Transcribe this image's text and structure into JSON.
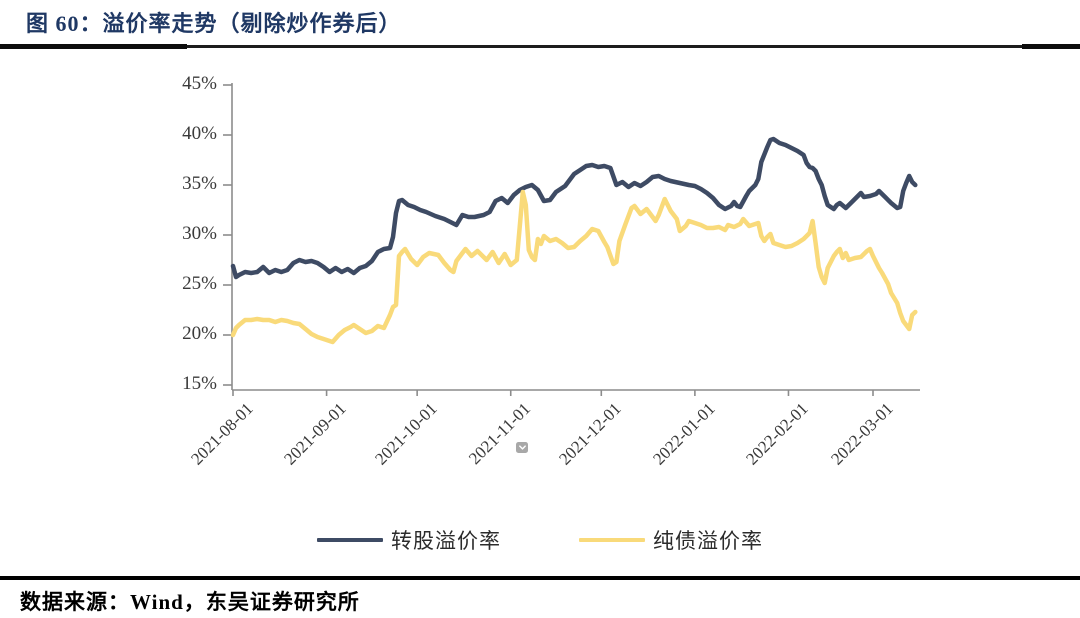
{
  "figure": {
    "title": "图 60：溢价率走势（剔除炒作券后）"
  },
  "footer": {
    "source_label": "数据来源：Wind，东吴证券研究所"
  },
  "icons": {
    "collapse_chevron": "chevron-down"
  },
  "colors": {
    "title": "#1F3864",
    "axis": "#8C8C8C",
    "rule": "#111111",
    "series_navy": "#3E4B64",
    "series_yellow": "#F9DA7A"
  },
  "chart_data": {
    "type": "line",
    "title": "溢价率走势（剔除炒作券后）",
    "xlabel": "",
    "ylabel": "",
    "grid": false,
    "x_axis": {
      "unit": "date",
      "domain_days": [
        0,
        226
      ],
      "ticks": [
        {
          "label": "2021-08-01",
          "day": 0
        },
        {
          "label": "2021-09-01",
          "day": 31
        },
        {
          "label": "2021-10-01",
          "day": 61
        },
        {
          "label": "2021-11-01",
          "day": 92
        },
        {
          "label": "2021-12-01",
          "day": 122
        },
        {
          "label": "2022-01-01",
          "day": 153
        },
        {
          "label": "2022-02-01",
          "day": 184
        },
        {
          "label": "2022-03-01",
          "day": 212
        }
      ]
    },
    "y_axis": {
      "ylim": [
        15,
        45
      ],
      "unit": "%",
      "ticks": [
        {
          "label": "45%",
          "value": 45
        },
        {
          "label": "40%",
          "value": 40
        },
        {
          "label": "35%",
          "value": 35
        },
        {
          "label": "30%",
          "value": 30
        },
        {
          "label": "25%",
          "value": 25
        },
        {
          "label": "20%",
          "value": 20
        },
        {
          "label": "15%",
          "value": 15
        }
      ]
    },
    "legend": {
      "position": "bottom",
      "entries": [
        {
          "label": "转股溢价率",
          "color": "#3E4B64"
        },
        {
          "label": "纯债溢价率",
          "color": "#F9DA7A"
        }
      ]
    },
    "series": [
      {
        "name": "转股溢价率",
        "color": "#3E4B64",
        "points": [
          [
            0,
            26.9
          ],
          [
            1,
            25.8
          ],
          [
            2,
            26.0
          ],
          [
            4,
            26.3
          ],
          [
            6,
            26.2
          ],
          [
            8,
            26.3
          ],
          [
            10,
            26.8
          ],
          [
            12,
            26.2
          ],
          [
            14,
            26.5
          ],
          [
            16,
            26.3
          ],
          [
            18,
            26.5
          ],
          [
            20,
            27.2
          ],
          [
            22,
            27.5
          ],
          [
            24,
            27.3
          ],
          [
            26,
            27.4
          ],
          [
            28,
            27.2
          ],
          [
            30,
            26.8
          ],
          [
            32,
            26.3
          ],
          [
            34,
            26.7
          ],
          [
            36,
            26.3
          ],
          [
            38,
            26.6
          ],
          [
            40,
            26.2
          ],
          [
            42,
            26.7
          ],
          [
            44,
            26.9
          ],
          [
            46,
            27.4
          ],
          [
            48,
            28.3
          ],
          [
            50,
            28.6
          ],
          [
            52,
            28.7
          ],
          [
            53,
            29.8
          ],
          [
            54,
            32.2
          ],
          [
            55,
            33.4
          ],
          [
            56,
            33.5
          ],
          [
            58,
            33.0
          ],
          [
            60,
            32.8
          ],
          [
            62,
            32.5
          ],
          [
            64,
            32.3
          ],
          [
            67,
            31.9
          ],
          [
            70,
            31.6
          ],
          [
            72,
            31.3
          ],
          [
            74,
            31.0
          ],
          [
            76,
            32.0
          ],
          [
            78,
            31.8
          ],
          [
            80,
            31.8
          ],
          [
            83,
            32.0
          ],
          [
            85,
            32.3
          ],
          [
            87,
            33.4
          ],
          [
            89,
            33.7
          ],
          [
            91,
            33.2
          ],
          [
            93,
            34.0
          ],
          [
            95,
            34.5
          ],
          [
            97,
            34.8
          ],
          [
            99,
            35.0
          ],
          [
            101,
            34.5
          ],
          [
            103,
            33.4
          ],
          [
            105,
            33.5
          ],
          [
            107,
            34.3
          ],
          [
            110,
            34.9
          ],
          [
            113,
            36.1
          ],
          [
            115,
            36.5
          ],
          [
            117,
            36.9
          ],
          [
            119,
            37.0
          ],
          [
            121,
            36.8
          ],
          [
            123,
            36.9
          ],
          [
            125,
            36.7
          ],
          [
            127,
            35.0
          ],
          [
            129,
            35.3
          ],
          [
            131,
            34.8
          ],
          [
            133,
            35.2
          ],
          [
            135,
            34.9
          ],
          [
            137,
            35.3
          ],
          [
            139,
            35.8
          ],
          [
            141,
            35.9
          ],
          [
            143,
            35.6
          ],
          [
            145,
            35.4
          ],
          [
            148,
            35.2
          ],
          [
            151,
            35.0
          ],
          [
            153,
            34.9
          ],
          [
            155,
            34.6
          ],
          [
            157,
            34.2
          ],
          [
            159,
            33.7
          ],
          [
            161,
            33.0
          ],
          [
            163,
            32.6
          ],
          [
            165,
            32.9
          ],
          [
            166,
            33.3
          ],
          [
            167,
            32.9
          ],
          [
            168,
            32.8
          ],
          [
            170,
            33.9
          ],
          [
            171,
            34.4
          ],
          [
            173,
            35.0
          ],
          [
            174,
            35.6
          ],
          [
            175,
            37.3
          ],
          [
            177,
            38.8
          ],
          [
            178,
            39.5
          ],
          [
            179,
            39.6
          ],
          [
            181,
            39.2
          ],
          [
            183,
            39.0
          ],
          [
            185,
            38.7
          ],
          [
            187,
            38.4
          ],
          [
            189,
            38.0
          ],
          [
            190,
            37.2
          ],
          [
            191,
            36.8
          ],
          [
            192,
            36.7
          ],
          [
            193,
            36.4
          ],
          [
            194,
            35.6
          ],
          [
            195,
            35.0
          ],
          [
            196,
            33.9
          ],
          [
            197,
            33.0
          ],
          [
            198,
            32.8
          ],
          [
            199,
            32.6
          ],
          [
            200,
            33.0
          ],
          [
            201,
            33.2
          ],
          [
            203,
            32.7
          ],
          [
            205,
            33.3
          ],
          [
            206,
            33.6
          ],
          [
            208,
            34.2
          ],
          [
            209,
            33.8
          ],
          [
            211,
            33.9
          ],
          [
            213,
            34.1
          ],
          [
            214,
            34.4
          ],
          [
            216,
            33.8
          ],
          [
            218,
            33.2
          ],
          [
            220,
            32.7
          ],
          [
            221,
            32.8
          ],
          [
            222,
            34.4
          ],
          [
            223,
            35.2
          ],
          [
            224,
            35.9
          ],
          [
            225,
            35.3
          ],
          [
            226,
            35.0
          ]
        ]
      },
      {
        "name": "纯债溢价率",
        "color": "#F9DA7A",
        "points": [
          [
            0,
            20.0
          ],
          [
            1,
            20.7
          ],
          [
            2,
            21.0
          ],
          [
            4,
            21.5
          ],
          [
            6,
            21.5
          ],
          [
            8,
            21.6
          ],
          [
            10,
            21.5
          ],
          [
            12,
            21.5
          ],
          [
            14,
            21.3
          ],
          [
            16,
            21.5
          ],
          [
            18,
            21.4
          ],
          [
            20,
            21.2
          ],
          [
            22,
            21.1
          ],
          [
            24,
            20.6
          ],
          [
            26,
            20.1
          ],
          [
            28,
            19.8
          ],
          [
            30,
            19.6
          ],
          [
            32,
            19.4
          ],
          [
            33,
            19.3
          ],
          [
            35,
            20.0
          ],
          [
            37,
            20.5
          ],
          [
            39,
            20.8
          ],
          [
            40,
            21.0
          ],
          [
            42,
            20.6
          ],
          [
            44,
            20.2
          ],
          [
            46,
            20.4
          ],
          [
            48,
            20.9
          ],
          [
            50,
            20.7
          ],
          [
            52,
            22.0
          ],
          [
            53,
            22.8
          ],
          [
            54,
            23.0
          ],
          [
            55,
            27.9
          ],
          [
            56,
            28.3
          ],
          [
            57,
            28.6
          ],
          [
            59,
            27.6
          ],
          [
            61,
            27.0
          ],
          [
            63,
            27.8
          ],
          [
            65,
            28.2
          ],
          [
            68,
            28.0
          ],
          [
            70,
            27.2
          ],
          [
            72,
            26.5
          ],
          [
            73,
            26.3
          ],
          [
            74,
            27.4
          ],
          [
            76,
            28.2
          ],
          [
            77,
            28.6
          ],
          [
            79,
            27.9
          ],
          [
            81,
            28.4
          ],
          [
            83,
            27.8
          ],
          [
            84,
            27.5
          ],
          [
            86,
            28.3
          ],
          [
            88,
            27.2
          ],
          [
            90,
            28.1
          ],
          [
            92,
            27.0
          ],
          [
            94,
            27.5
          ],
          [
            96,
            34.3
          ],
          [
            97,
            33.0
          ],
          [
            98,
            28.5
          ],
          [
            99,
            27.8
          ],
          [
            100,
            27.5
          ],
          [
            101,
            29.6
          ],
          [
            102,
            29.1
          ],
          [
            103,
            29.9
          ],
          [
            105,
            29.4
          ],
          [
            107,
            29.6
          ],
          [
            109,
            29.2
          ],
          [
            111,
            28.7
          ],
          [
            113,
            28.8
          ],
          [
            115,
            29.4
          ],
          [
            117,
            29.9
          ],
          [
            119,
            30.6
          ],
          [
            121,
            30.4
          ],
          [
            123,
            29.3
          ],
          [
            124,
            28.8
          ],
          [
            126,
            27.1
          ],
          [
            127,
            27.3
          ],
          [
            128,
            29.4
          ],
          [
            130,
            31.1
          ],
          [
            132,
            32.7
          ],
          [
            133,
            32.9
          ],
          [
            135,
            32.1
          ],
          [
            137,
            32.6
          ],
          [
            139,
            31.8
          ],
          [
            140,
            31.4
          ],
          [
            141,
            32.0
          ],
          [
            143,
            33.6
          ],
          [
            145,
            32.4
          ],
          [
            147,
            31.6
          ],
          [
            148,
            30.4
          ],
          [
            150,
            30.9
          ],
          [
            151,
            31.4
          ],
          [
            153,
            31.2
          ],
          [
            155,
            31.0
          ],
          [
            157,
            30.7
          ],
          [
            159,
            30.7
          ],
          [
            161,
            30.8
          ],
          [
            163,
            30.5
          ],
          [
            164,
            31.0
          ],
          [
            166,
            30.8
          ],
          [
            168,
            31.1
          ],
          [
            169,
            31.6
          ],
          [
            171,
            30.9
          ],
          [
            173,
            31.1
          ],
          [
            174,
            31.2
          ],
          [
            175,
            29.9
          ],
          [
            176,
            29.4
          ],
          [
            177,
            29.8
          ],
          [
            178,
            30.1
          ],
          [
            179,
            29.2
          ],
          [
            181,
            29.0
          ],
          [
            183,
            28.8
          ],
          [
            185,
            28.9
          ],
          [
            187,
            29.2
          ],
          [
            189,
            29.6
          ],
          [
            191,
            30.2
          ],
          [
            192,
            31.4
          ],
          [
            193,
            29.2
          ],
          [
            194,
            26.8
          ],
          [
            195,
            25.8
          ],
          [
            196,
            25.2
          ],
          [
            197,
            26.7
          ],
          [
            199,
            27.9
          ],
          [
            200,
            28.3
          ],
          [
            201,
            28.6
          ],
          [
            202,
            27.7
          ],
          [
            203,
            28.2
          ],
          [
            204,
            27.5
          ],
          [
            206,
            27.7
          ],
          [
            208,
            27.8
          ],
          [
            210,
            28.4
          ],
          [
            211,
            28.6
          ],
          [
            212,
            27.9
          ],
          [
            214,
            26.7
          ],
          [
            215,
            26.2
          ],
          [
            217,
            25.1
          ],
          [
            218,
            24.2
          ],
          [
            220,
            23.2
          ],
          [
            221,
            22.2
          ],
          [
            222,
            21.4
          ],
          [
            223,
            21.0
          ],
          [
            224,
            20.6
          ],
          [
            225,
            22.0
          ],
          [
            226,
            22.3
          ]
        ]
      }
    ]
  }
}
